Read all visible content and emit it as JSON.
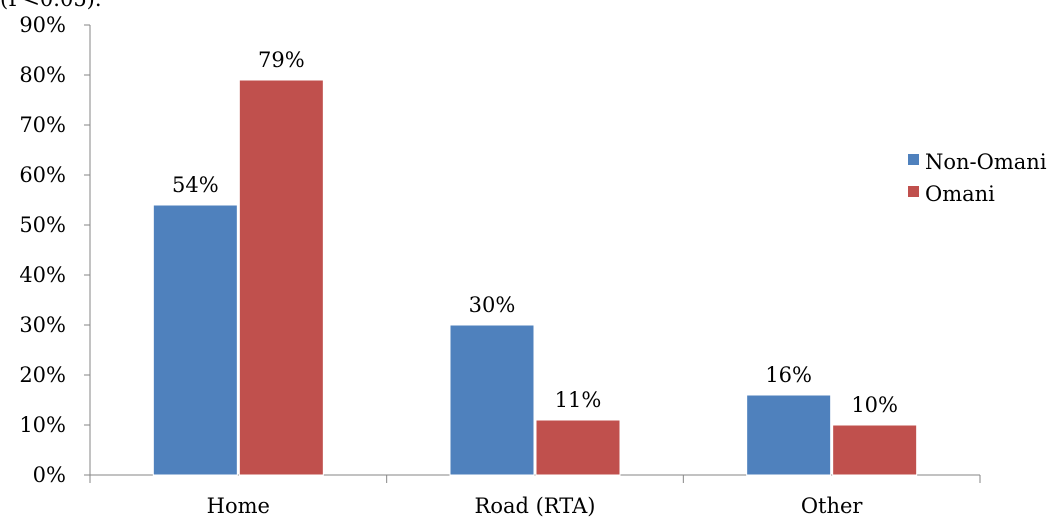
{
  "page": {
    "caption_fragment": "(P<0.05)."
  },
  "chart_data": {
    "type": "bar",
    "categories": [
      "Home",
      "Road (RTA)",
      "Other"
    ],
    "series": [
      {
        "name": "Non-Omani",
        "values": [
          54,
          30,
          16
        ],
        "color": "#4f81bd"
      },
      {
        "name": "Omani",
        "values": [
          79,
          11,
          10
        ],
        "color": "#c0504d"
      }
    ],
    "data_labels": [
      [
        "54%",
        "30%",
        "16%"
      ],
      [
        "79%",
        "11%",
        "10%"
      ]
    ],
    "y_ticks": [
      "0%",
      "10%",
      "20%",
      "30%",
      "40%",
      "50%",
      "60%",
      "70%",
      "80%",
      "90%"
    ],
    "ylim": [
      0,
      90
    ],
    "title": "",
    "xlabel": "",
    "ylabel": "",
    "legend_position": "right",
    "grid": false
  }
}
